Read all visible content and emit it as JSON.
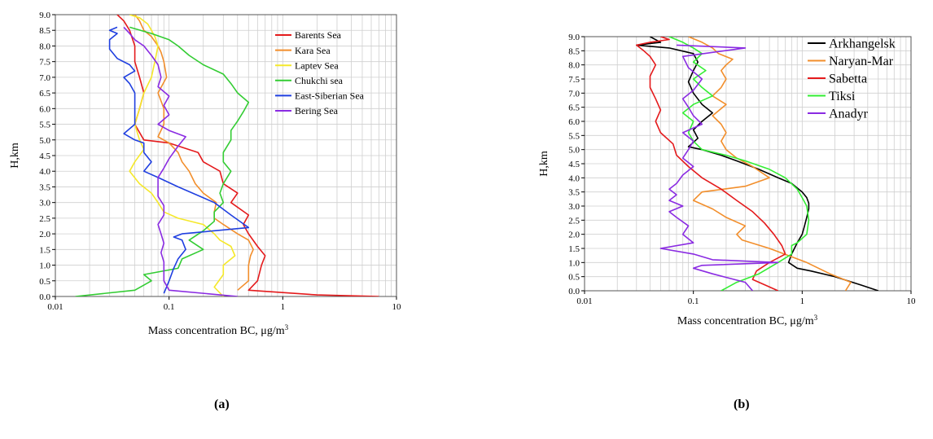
{
  "panel_labels": [
    "(a)",
    "(b)"
  ],
  "chart_data": [
    {
      "type": "line",
      "panel": "(a)",
      "xlabel_main": "Mass concentration BC, μg/m",
      "xlabel_sup": "3",
      "ylabel": "H,km",
      "xscale": "log",
      "xlim": [
        0.01,
        10
      ],
      "ylim": [
        0,
        9
      ],
      "xticks": [
        "0.01",
        "0.1",
        "1",
        "10"
      ],
      "yticks": [
        "0.0",
        "0.5",
        "1.0",
        "1.5",
        "2.0",
        "2.5",
        "3.0",
        "3.5",
        "4.0",
        "4.5",
        "5.0",
        "5.5",
        "6.0",
        "6.5",
        "7.0",
        "7.5",
        "8.0",
        "8.5",
        "9.0"
      ],
      "grid": true,
      "legend_position": "top-right",
      "series": [
        {
          "name": "Barents Sea",
          "color": "#e41a1c",
          "x": [
            7,
            2,
            0.5,
            0.6,
            0.65,
            0.7,
            0.6,
            0.5,
            0.45,
            0.5,
            0.35,
            0.4,
            0.3,
            0.28,
            0.2,
            0.18,
            0.1,
            0.06,
            0.05,
            0.055,
            0.06,
            0.055,
            0.05,
            0.05,
            0.045,
            0.04,
            0.035
          ],
          "y": [
            0,
            0.05,
            0.2,
            0.5,
            1.0,
            1.3,
            1.6,
            2.0,
            2.3,
            2.6,
            3.0,
            3.3,
            3.6,
            4.0,
            4.3,
            4.6,
            4.9,
            5.0,
            5.5,
            6.0,
            6.5,
            7.0,
            7.5,
            8.0,
            8.5,
            8.8,
            9.0
          ]
        },
        {
          "name": "Kara Sea",
          "color": "#f28e2b",
          "x": [
            0.4,
            0.5,
            0.5,
            0.52,
            0.55,
            0.5,
            0.4,
            0.3,
            0.25,
            0.25,
            0.26,
            0.2,
            0.17,
            0.15,
            0.13,
            0.12,
            0.1,
            0.08,
            0.09,
            0.09,
            0.08,
            0.095,
            0.09,
            0.085,
            0.08,
            0.07,
            0.06,
            0.055,
            0.05
          ],
          "y": [
            0.2,
            0.5,
            1.0,
            1.3,
            1.5,
            1.8,
            2.0,
            2.3,
            2.5,
            2.7,
            3.0,
            3.3,
            3.6,
            4.0,
            4.3,
            4.6,
            4.9,
            5.1,
            5.5,
            6.0,
            6.5,
            7.0,
            7.5,
            7.8,
            8.0,
            8.3,
            8.5,
            8.8,
            9.0
          ]
        },
        {
          "name": "Laptev Sea",
          "color": "#f5e82a",
          "x": [
            0.3,
            0.25,
            0.3,
            0.3,
            0.38,
            0.35,
            0.28,
            0.25,
            0.2,
            0.12,
            0.09,
            0.08,
            0.07,
            0.055,
            0.045,
            0.05,
            0.06,
            0.055,
            0.05,
            0.055,
            0.06,
            0.07,
            0.075,
            0.08,
            0.075,
            0.07,
            0.065,
            0.055,
            0.045
          ],
          "y": [
            0,
            0.3,
            0.7,
            1.0,
            1.3,
            1.6,
            1.8,
            2.0,
            2.3,
            2.5,
            2.7,
            3.0,
            3.3,
            3.6,
            4.0,
            4.3,
            4.7,
            5.0,
            5.5,
            6.0,
            6.5,
            7.0,
            7.5,
            8.0,
            8.3,
            8.5,
            8.7,
            8.9,
            9.0
          ]
        },
        {
          "name": "Chukchi sea",
          "color": "#33cc33",
          "x": [
            0.015,
            0.05,
            0.07,
            0.06,
            0.12,
            0.13,
            0.2,
            0.15,
            0.2,
            0.25,
            0.25,
            0.3,
            0.28,
            0.3,
            0.35,
            0.3,
            0.3,
            0.35,
            0.35,
            0.4,
            0.45,
            0.5,
            0.4,
            0.35,
            0.3,
            0.2,
            0.15,
            0.12,
            0.1,
            0.07,
            0.045
          ],
          "y": [
            0,
            0.2,
            0.5,
            0.7,
            0.9,
            1.2,
            1.5,
            1.8,
            2.1,
            2.4,
            2.7,
            3.0,
            3.3,
            3.6,
            4.0,
            4.3,
            4.6,
            5.0,
            5.3,
            5.6,
            5.9,
            6.2,
            6.5,
            6.8,
            7.1,
            7.4,
            7.7,
            8.0,
            8.2,
            8.4,
            8.6
          ]
        },
        {
          "name": "East-Siberian Sea",
          "color": "#1f3fe0",
          "x": [
            0.09,
            0.1,
            0.11,
            0.12,
            0.14,
            0.13,
            0.11,
            0.13,
            0.5,
            0.35,
            0.25,
            0.12,
            0.08,
            0.06,
            0.07,
            0.06,
            0.06,
            0.05,
            0.04,
            0.05,
            0.05,
            0.05,
            0.045,
            0.04,
            0.05,
            0.045,
            0.035,
            0.03,
            0.03,
            0.035,
            0.03,
            0.035
          ],
          "y": [
            0.1,
            0.5,
            0.9,
            1.2,
            1.5,
            1.8,
            1.9,
            2.0,
            2.2,
            2.6,
            3.0,
            3.5,
            3.8,
            4.0,
            4.3,
            4.6,
            4.9,
            5.0,
            5.2,
            5.5,
            6.0,
            6.5,
            6.8,
            7.0,
            7.2,
            7.4,
            7.6,
            7.9,
            8.2,
            8.4,
            8.5,
            8.6
          ]
        },
        {
          "name": "Bering Sea",
          "color": "#8a2be2",
          "x": [
            0.4,
            0.1,
            0.09,
            0.09,
            0.09,
            0.085,
            0.09,
            0.085,
            0.08,
            0.09,
            0.09,
            0.08,
            0.08,
            0.08,
            0.09,
            0.1,
            0.12,
            0.14,
            0.1,
            0.08,
            0.1,
            0.09,
            0.1,
            0.08,
            0.085,
            0.08,
            0.07,
            0.06,
            0.05,
            0.045,
            0.04
          ],
          "y": [
            0,
            0.2,
            0.5,
            0.8,
            1.1,
            1.4,
            1.7,
            2.0,
            2.3,
            2.6,
            2.9,
            3.2,
            3.5,
            3.8,
            4.1,
            4.4,
            4.8,
            5.1,
            5.3,
            5.5,
            5.8,
            6.1,
            6.4,
            6.7,
            7.0,
            7.4,
            7.7,
            8.0,
            8.2,
            8.4,
            8.6
          ]
        }
      ]
    },
    {
      "type": "line",
      "panel": "(b)",
      "xlabel_main": "Mass concentration BC, μg/m",
      "xlabel_sup": "3",
      "ylabel": "H,km",
      "xscale": "log",
      "xlim": [
        0.01,
        10
      ],
      "ylim": [
        0,
        9
      ],
      "xticks": [
        "0.01",
        "0.1",
        "1",
        "10"
      ],
      "yticks": [
        "0.0",
        "0.5",
        "1.0",
        "1.5",
        "2.0",
        "2.5",
        "3.0",
        "3.5",
        "4.0",
        "4.5",
        "5.0",
        "5.5",
        "6.0",
        "6.5",
        "7.0",
        "7.5",
        "8.0",
        "8.5",
        "9.0"
      ],
      "grid": true,
      "legend_position": "top-right",
      "series": [
        {
          "name": "Arkhangelsk",
          "color": "#000000",
          "x": [
            5,
            3.5,
            2,
            1.2,
            0.9,
            0.75,
            0.8,
            0.9,
            1.0,
            1.05,
            1.1,
            1.15,
            1.15,
            1.1,
            1.0,
            0.8,
            0.6,
            0.4,
            0.25,
            0.18,
            0.12,
            0.09,
            0.11,
            0.1,
            0.12,
            0.15,
            0.12,
            0.1,
            0.09,
            0.1,
            0.11,
            0.1,
            0.06,
            0.03,
            0.05,
            0.04
          ],
          "y": [
            0,
            0.2,
            0.5,
            0.7,
            0.8,
            1.0,
            1.3,
            1.7,
            2.0,
            2.3,
            2.6,
            2.9,
            3.1,
            3.3,
            3.5,
            3.8,
            4.0,
            4.3,
            4.6,
            4.8,
            5.0,
            5.1,
            5.4,
            5.7,
            6.0,
            6.3,
            6.6,
            7.0,
            7.4,
            7.8,
            8.1,
            8.4,
            8.6,
            8.7,
            8.8,
            9.0
          ]
        },
        {
          "name": "Naryan-Mar",
          "color": "#f28e2b",
          "x": [
            2.5,
            2.8,
            1.8,
            1.1,
            0.5,
            0.28,
            0.25,
            0.3,
            0.2,
            0.15,
            0.1,
            0.12,
            0.3,
            0.5,
            0.35,
            0.25,
            0.2,
            0.18,
            0.2,
            0.18,
            0.15,
            0.2,
            0.15,
            0.18,
            0.2,
            0.18,
            0.2,
            0.23,
            0.17,
            0.15,
            0.12,
            0.09
          ],
          "y": [
            0,
            0.3,
            0.6,
            1.0,
            1.5,
            1.8,
            2.0,
            2.3,
            2.6,
            2.9,
            3.2,
            3.5,
            3.7,
            4.0,
            4.4,
            4.7,
            5.0,
            5.3,
            5.6,
            5.9,
            6.2,
            6.6,
            6.9,
            7.2,
            7.5,
            7.8,
            8.0,
            8.2,
            8.4,
            8.6,
            8.8,
            9.0
          ]
        },
        {
          "name": "Sabetta",
          "color": "#e41a1c",
          "x": [
            0.6,
            0.35,
            0.38,
            0.5,
            0.7,
            0.65,
            0.55,
            0.45,
            0.35,
            0.25,
            0.18,
            0.12,
            0.09,
            0.07,
            0.065,
            0.05,
            0.045,
            0.05,
            0.045,
            0.04,
            0.04,
            0.045,
            0.04,
            0.035,
            0.03,
            0.04,
            0.06,
            0.05
          ],
          "y": [
            0,
            0.4,
            0.7,
            1.0,
            1.3,
            1.6,
            2.0,
            2.4,
            2.8,
            3.2,
            3.6,
            4.0,
            4.4,
            4.8,
            5.2,
            5.6,
            6.0,
            6.4,
            6.8,
            7.2,
            7.6,
            8.0,
            8.3,
            8.5,
            8.7,
            8.8,
            8.9,
            9.0
          ]
        },
        {
          "name": "Tiksi",
          "color": "#33ee33",
          "x": [
            0.18,
            0.25,
            0.4,
            0.6,
            0.8,
            0.8,
            0.9,
            1.1,
            1.15,
            1.1,
            1.0,
            0.9,
            0.7,
            0.5,
            0.3,
            0.2,
            0.12,
            0.1,
            0.09,
            0.1,
            0.08,
            0.1,
            0.15,
            0.12,
            0.1,
            0.13,
            0.1,
            0.12,
            0.1,
            0.08,
            0.06
          ],
          "y": [
            0,
            0.3,
            0.6,
            1.0,
            1.3,
            1.6,
            1.7,
            2.0,
            2.5,
            3.0,
            3.3,
            3.6,
            4.0,
            4.3,
            4.6,
            4.8,
            5.0,
            5.3,
            5.6,
            6.0,
            6.3,
            6.6,
            6.9,
            7.2,
            7.5,
            7.8,
            8.1,
            8.4,
            8.6,
            8.8,
            9.0
          ]
        },
        {
          "name": "Anadyr",
          "color": "#8a2be2",
          "x": [
            0.35,
            0.3,
            0.15,
            0.1,
            0.12,
            0.6,
            0.15,
            0.1,
            0.05,
            0.1,
            0.08,
            0.09,
            0.07,
            0.06,
            0.08,
            0.06,
            0.07,
            0.06,
            0.07,
            0.08,
            0.1,
            0.08,
            0.09,
            0.1,
            0.08,
            0.12,
            0.1,
            0.09,
            0.08,
            0.1,
            0.12,
            0.09,
            0.08,
            0.3,
            0.07
          ],
          "y": [
            0,
            0.3,
            0.6,
            0.8,
            0.9,
            1.0,
            1.1,
            1.3,
            1.5,
            1.7,
            2.0,
            2.3,
            2.6,
            2.8,
            3.0,
            3.2,
            3.4,
            3.6,
            3.8,
            4.1,
            4.4,
            4.7,
            5.0,
            5.3,
            5.6,
            5.9,
            6.2,
            6.5,
            6.8,
            7.1,
            7.5,
            7.9,
            8.3,
            8.6,
            8.7
          ]
        }
      ]
    }
  ]
}
